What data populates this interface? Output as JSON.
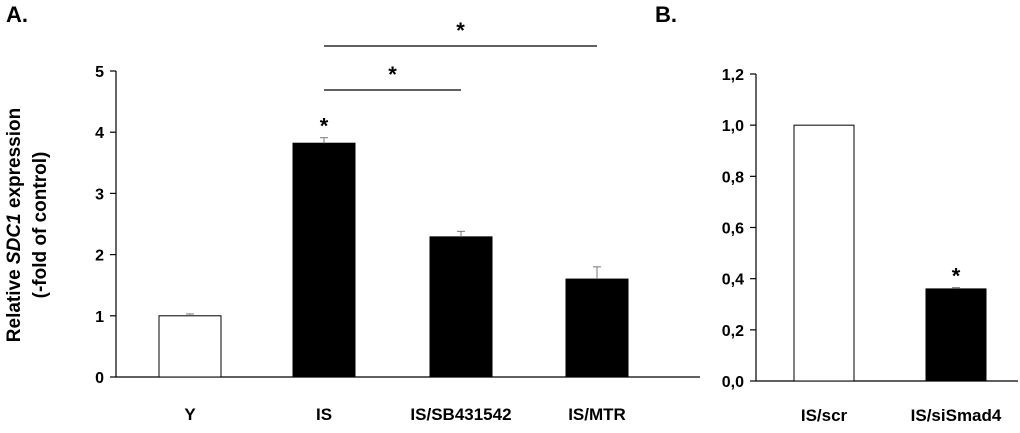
{
  "panels": {
    "a_label": "A.",
    "b_label": "B."
  },
  "y_axis_label": {
    "prefix": "Relative ",
    "gene": "SDC1",
    "suffix": " expression",
    "line2": "(-fold of control)"
  },
  "chart_data": [
    {
      "type": "bar",
      "panel": "A.",
      "categories": [
        "Y",
        "IS",
        "IS/SB431542",
        "IS/MTR"
      ],
      "values": [
        1.0,
        3.82,
        2.29,
        1.6
      ],
      "errors": [
        0.03,
        0.09,
        0.09,
        0.2
      ],
      "fill": [
        "#ffffff",
        "#000000",
        "#000000",
        "#000000"
      ],
      "ylim": [
        0,
        5
      ],
      "yticks": [
        "0",
        "1",
        "2",
        "3",
        "4",
        "5"
      ],
      "bar_stars": [
        "",
        "*",
        "",
        ""
      ],
      "brackets": [
        {
          "from": 1,
          "to": 2,
          "label": "*"
        },
        {
          "from": 1,
          "to": 3,
          "label": "*"
        }
      ],
      "grid": false
    },
    {
      "type": "bar",
      "panel": "B.",
      "categories": [
        "IS/scr",
        "IS/siSmad4"
      ],
      "values": [
        1.0,
        0.36
      ],
      "errors": [
        0,
        0.005
      ],
      "fill": [
        "#ffffff",
        "#000000"
      ],
      "ylim": [
        0,
        1.2
      ],
      "yticks": [
        "0,0",
        "0,2",
        "0,4",
        "0,6",
        "0,8",
        "1,0",
        "1,2"
      ],
      "bar_stars": [
        "",
        "*"
      ],
      "brackets": [],
      "grid": false
    }
  ]
}
